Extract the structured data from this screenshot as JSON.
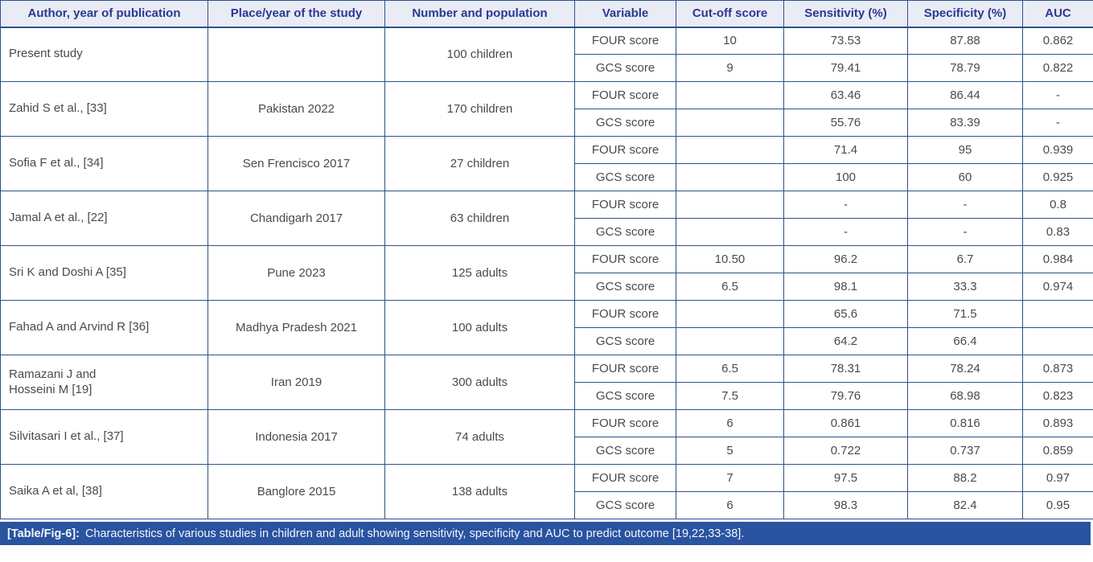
{
  "colors": {
    "header_bg": "#e9ebf5",
    "header_text": "#2b3990",
    "border": "#2d5385",
    "body_text": "#4a4a4c",
    "caption_bg": "#2a53a0",
    "caption_text": "#ffffff"
  },
  "caption": {
    "label": "[Table/Fig-6]:",
    "text": "Characteristics of various studies in children and adult showing sensitivity, specificity and AUC to predict outcome [19,22,33-38]."
  },
  "table": {
    "columns": [
      "Author, year of publication",
      "Place/year of the study",
      "Number and population",
      "Variable",
      "Cut-off score",
      "Sensitivity (%)",
      "Specificity (%)",
      "AUC"
    ],
    "rows": [
      {
        "author": "Present study",
        "place": "",
        "population": "100 children",
        "entries": [
          {
            "variable": "FOUR score",
            "cutoff": "10",
            "sensitivity": "73.53",
            "specificity": "87.88",
            "auc": "0.862"
          },
          {
            "variable": "GCS score",
            "cutoff": "9",
            "sensitivity": "79.41",
            "specificity": "78.79",
            "auc": "0.822"
          }
        ]
      },
      {
        "author": "Zahid S et al., [33]",
        "place": "Pakistan 2022",
        "population": "170 children",
        "entries": [
          {
            "variable": "FOUR score",
            "cutoff": "",
            "sensitivity": "63.46",
            "specificity": "86.44",
            "auc": "-"
          },
          {
            "variable": "GCS score",
            "cutoff": "",
            "sensitivity": "55.76",
            "specificity": "83.39",
            "auc": "-"
          }
        ]
      },
      {
        "author": "Sofia F et al., [34]",
        "place": "Sen Frencisco 2017",
        "population": "27 children",
        "entries": [
          {
            "variable": "FOUR score",
            "cutoff": "",
            "sensitivity": "71.4",
            "specificity": "95",
            "auc": "0.939"
          },
          {
            "variable": "GCS score",
            "cutoff": "",
            "sensitivity": "100",
            "specificity": "60",
            "auc": "0.925"
          }
        ]
      },
      {
        "author": "Jamal A et al., [22]",
        "place": "Chandigarh 2017",
        "population": "63 children",
        "entries": [
          {
            "variable": "FOUR score",
            "cutoff": "",
            "sensitivity": "-",
            "specificity": "-",
            "auc": "0.8"
          },
          {
            "variable": "GCS score",
            "cutoff": "",
            "sensitivity": "-",
            "specificity": "-",
            "auc": "0.83"
          }
        ]
      },
      {
        "author": "Sri K and Doshi A [35]",
        "place": "Pune 2023",
        "population": "125 adults",
        "entries": [
          {
            "variable": "FOUR score",
            "cutoff": "10.50",
            "sensitivity": "96.2",
            "specificity": "6.7",
            "auc": "0.984"
          },
          {
            "variable": "GCS score",
            "cutoff": "6.5",
            "sensitivity": "98.1",
            "specificity": "33.3",
            "auc": "0.974"
          }
        ]
      },
      {
        "author": "Fahad A and Arvind R [36]",
        "place": "Madhya Pradesh 2021",
        "population": "100 adults",
        "entries": [
          {
            "variable": "FOUR score",
            "cutoff": "",
            "sensitivity": "65.6",
            "specificity": "71.5",
            "auc": ""
          },
          {
            "variable": "GCS score",
            "cutoff": "",
            "sensitivity": "64.2",
            "specificity": "66.4",
            "auc": ""
          }
        ]
      },
      {
        "author": "Ramazani J and\nHosseini M [19]",
        "place": "Iran 2019",
        "population": "300 adults",
        "entries": [
          {
            "variable": "FOUR score",
            "cutoff": "6.5",
            "sensitivity": "78.31",
            "specificity": "78.24",
            "auc": "0.873"
          },
          {
            "variable": "GCS score",
            "cutoff": "7.5",
            "sensitivity": "79.76",
            "specificity": "68.98",
            "auc": "0.823"
          }
        ]
      },
      {
        "author": "Silvitasari I et al., [37]",
        "place": "Indonesia 2017",
        "population": "74 adults",
        "entries": [
          {
            "variable": "FOUR score",
            "cutoff": "6",
            "sensitivity": "0.861",
            "specificity": "0.816",
            "auc": "0.893"
          },
          {
            "variable": "GCS score",
            "cutoff": "5",
            "sensitivity": "0.722",
            "specificity": "0.737",
            "auc": "0.859"
          }
        ]
      },
      {
        "author": "Saika A et al, [38]",
        "place": "Banglore 2015",
        "population": "138 adults",
        "entries": [
          {
            "variable": "FOUR score",
            "cutoff": "7",
            "sensitivity": "97.5",
            "specificity": "88.2",
            "auc": "0.97"
          },
          {
            "variable": "GCS score",
            "cutoff": "6",
            "sensitivity": "98.3",
            "specificity": "82.4",
            "auc": "0.95"
          }
        ]
      }
    ]
  }
}
